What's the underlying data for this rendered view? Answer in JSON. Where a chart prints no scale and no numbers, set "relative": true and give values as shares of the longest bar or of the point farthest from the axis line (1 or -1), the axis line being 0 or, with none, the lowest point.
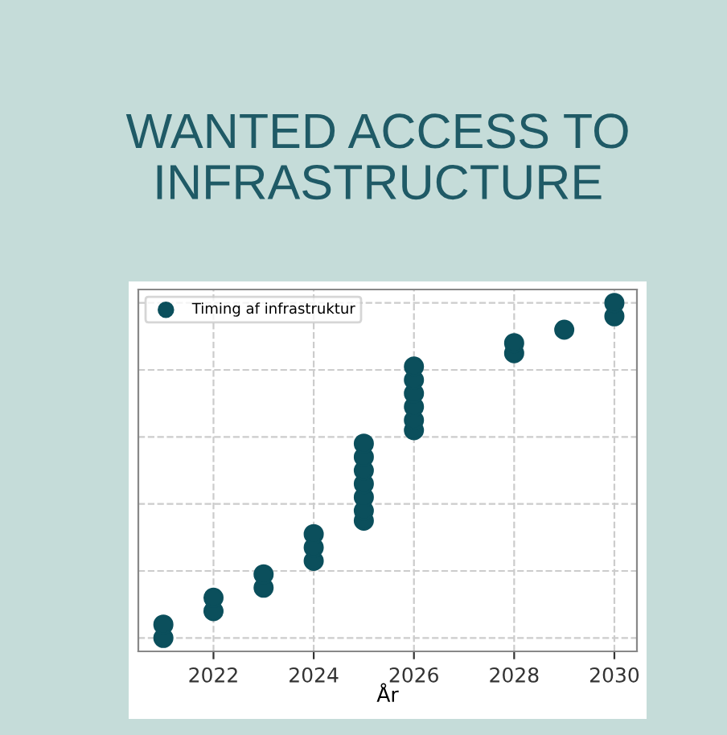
{
  "chart_data": {
    "type": "scatter",
    "title": "WANTED ACCESS TO\nINFRASTRUCTURE",
    "xlabel": "År",
    "relative": true,
    "x": [
      2021,
      2021,
      2022,
      2022,
      2023,
      2023,
      2024,
      2024,
      2024,
      2025,
      2025,
      2025,
      2025,
      2025,
      2025,
      2025,
      2026,
      2026,
      2026,
      2026,
      2026,
      2026,
      2028,
      2028,
      2029,
      2030,
      2030
    ],
    "series": [
      {
        "name": "Timing af infrastruktur",
        "color": "#0b4f5c",
        "values": [
          0,
          0.04,
          0.08,
          0.12,
          0.15,
          0.19,
          0.23,
          0.27,
          0.31,
          0.35,
          0.38,
          0.42,
          0.46,
          0.5,
          0.54,
          0.58,
          0.62,
          0.65,
          0.69,
          0.73,
          0.77,
          0.81,
          0.85,
          0.88,
          0.92,
          0.96,
          1
        ]
      }
    ],
    "xlim": [
      2020.5,
      2030.45
    ],
    "xticks": [
      2022,
      2024,
      2026,
      2028,
      2030
    ],
    "grid": true,
    "legend": "top left",
    "marker": "circle",
    "tick_labels": "x"
  }
}
